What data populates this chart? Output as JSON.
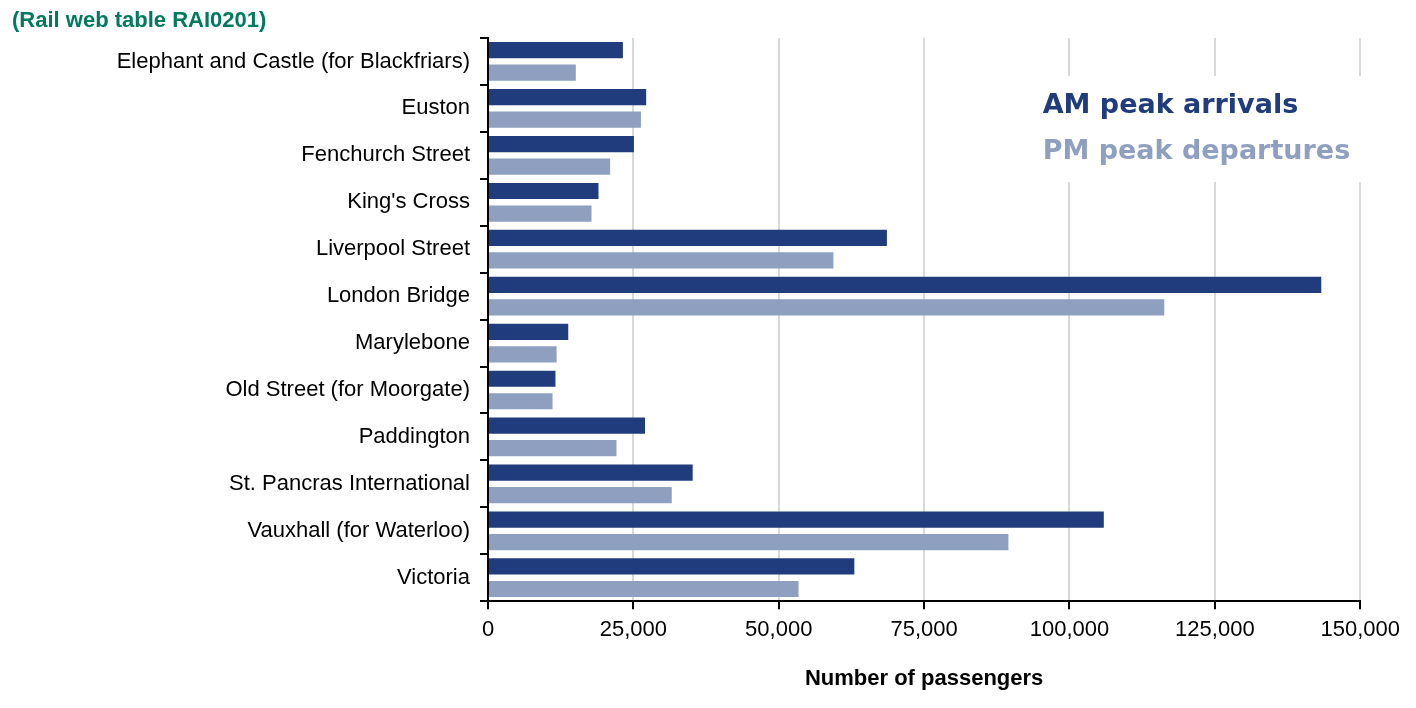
{
  "chart_data": {
    "type": "bar",
    "orientation": "horizontal",
    "xlabel": "Number of passengers",
    "annotations": [
      "(Rail web table RAI0201)"
    ],
    "categories": [
      "Elephant and Castle (for Blackfriars)",
      "Euston",
      "Fenchurch Street",
      "King's Cross",
      "Liverpool Street",
      "London Bridge",
      "Marylebone",
      "Old Street (for Moorgate)",
      "Paddington",
      "St. Pancras International",
      "Vauxhall (for Waterloo)",
      "Victoria"
    ],
    "series": [
      {
        "name": "AM peak arrivals",
        "color": "#203c7c",
        "values": [
          23200,
          27200,
          25100,
          19000,
          68600,
          143300,
          13800,
          11600,
          27000,
          35200,
          105900,
          63000
        ]
      },
      {
        "name": "PM peak departures",
        "color": "#8e9fc0",
        "values": [
          15100,
          26300,
          21000,
          17800,
          59400,
          116300,
          11800,
          11100,
          22100,
          31600,
          89500,
          53400
        ]
      }
    ],
    "xlim": [
      0,
      150000
    ],
    "xticks": [
      0,
      {
        "value": 25000,
        "label": "25,000"
      },
      {
        "value": 50000,
        "label": "50,000"
      },
      {
        "value": 75000,
        "label": "75,000"
      },
      {
        "value": 100000,
        "label": "100,000"
      },
      {
        "value": 125000,
        "label": "125,000"
      },
      {
        "value": 150000,
        "label": "150,000"
      }
    ],
    "grid": "x",
    "legend": "top right"
  }
}
